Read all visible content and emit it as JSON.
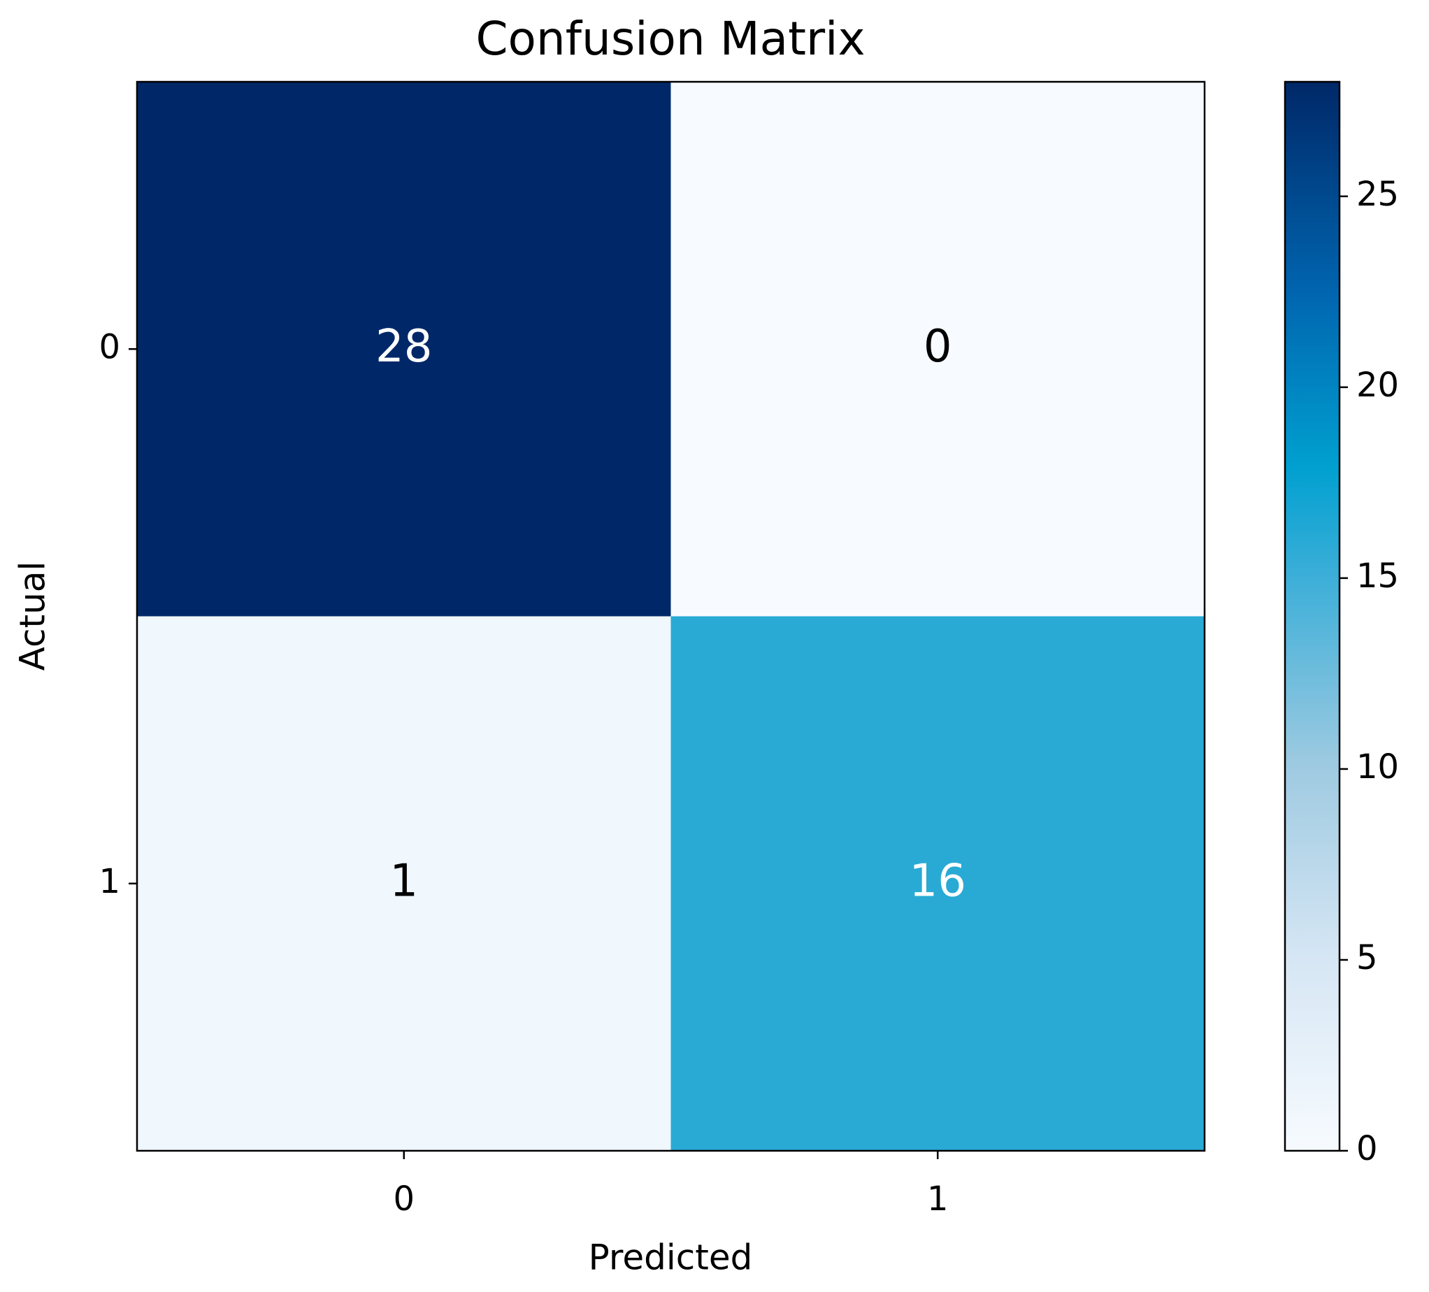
{
  "chart_data": {
    "type": "heatmap",
    "title": "Confusion Matrix",
    "x_label": "Predicted",
    "y_label": "Actual",
    "x_categories": [
      "0",
      "1"
    ],
    "y_categories": [
      "0",
      "1"
    ],
    "values": [
      [
        28,
        0
      ],
      [
        1,
        16
      ]
    ],
    "colormap": "Blues",
    "colorbar_lim": [
      0,
      28
    ],
    "colorbar_ticks": [
      0,
      5,
      10,
      15,
      20,
      25
    ]
  }
}
